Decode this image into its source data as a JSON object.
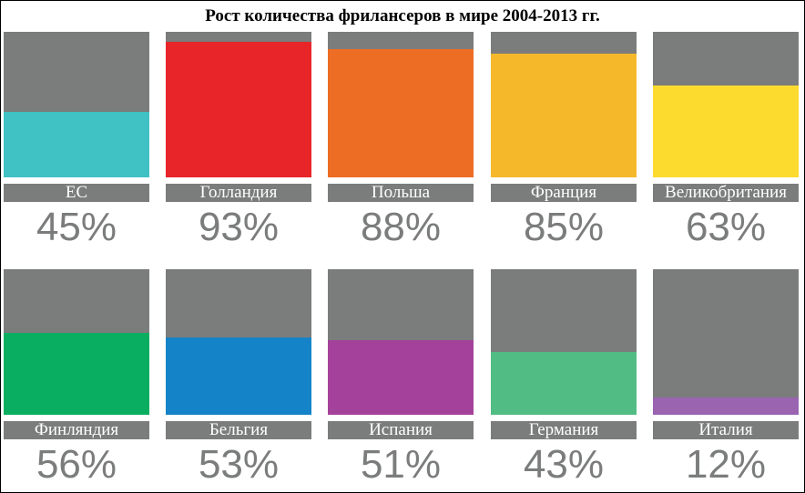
{
  "chart_data": {
    "type": "bar",
    "title": "Рост количества фрилансеров в мире 2004-2013 гг.",
    "ylim": [
      0,
      100
    ],
    "categories": [
      "ЕС",
      "Голландия",
      "Польша",
      "Франция",
      "Великобритания",
      "Финляндия",
      "Бельгия",
      "Испания",
      "Германия",
      "Италия"
    ],
    "values": [
      45,
      93,
      88,
      85,
      63,
      56,
      53,
      51,
      43,
      12
    ],
    "value_labels": [
      "45%",
      "93%",
      "88%",
      "85%",
      "63%",
      "56%",
      "53%",
      "51%",
      "43%",
      "12%"
    ],
    "colors": [
      "#40c1c4",
      "#e8262a",
      "#ee6d25",
      "#f6b82b",
      "#fcdb2e",
      "#0aae60",
      "#1483c8",
      "#a4429b",
      "#51bd84",
      "#9a64b1"
    ],
    "background_color": "#7b7c7c",
    "label_color": "#ffffff",
    "value_color": "#7b7c7c"
  }
}
